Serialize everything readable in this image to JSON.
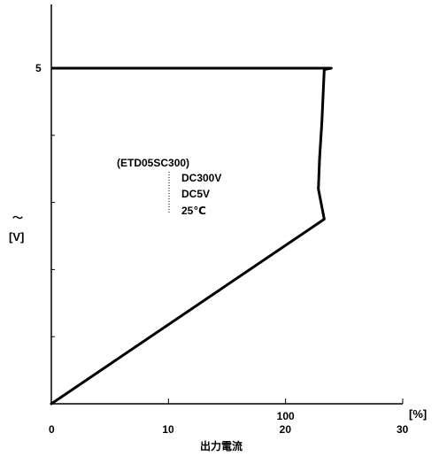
{
  "chart_data": {
    "type": "line",
    "title": "",
    "xlabel": "出力電流",
    "xunit": "[%]",
    "ylabel": "～",
    "yunit": "[V]",
    "xlim": [
      0,
      30
    ],
    "ylim": [
      0,
      5
    ],
    "x_ticks": [
      0,
      10,
      20,
      30
    ],
    "x_tick_labels": [
      "0",
      "10",
      "20",
      "30"
    ],
    "x_tick_sublabels": [
      "",
      "",
      "100",
      ""
    ],
    "y_ticks": [
      5
    ],
    "y_tick_labels": [
      "5"
    ],
    "grid": false,
    "legend": "none",
    "series": [
      {
        "name": "",
        "x": [
          0,
          23.3,
          22.8,
          22.9,
          23.1,
          23.3,
          23.9
        ],
        "y": [
          0,
          2.75,
          3.2,
          3.65,
          4.2,
          4.98,
          5.0
        ]
      }
    ],
    "annotation": {
      "model": "(ETD05SC300)",
      "lines": [
        "DC300V",
        "DC5V",
        "25℃"
      ]
    }
  }
}
